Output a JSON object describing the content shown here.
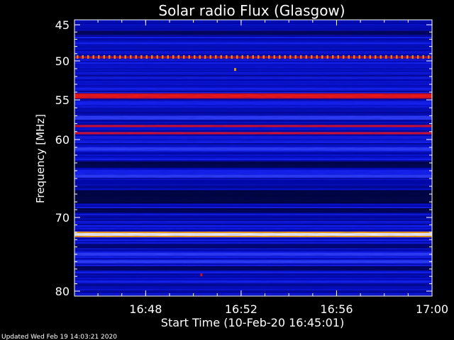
{
  "chart_data": {
    "type": "heatmap",
    "title": "Solar radio Flux (Glasgow)",
    "xlabel": "Start Time (10-Feb-20 16:45:01)",
    "ylabel": "Frequency [MHz]",
    "x_unit": "time",
    "x_range": [
      "16:45:01",
      "17:00"
    ],
    "x_ticks": [
      "16:48",
      "16:52",
      "16:56",
      "17:00"
    ],
    "y_range": [
      45,
      80
    ],
    "y_ticks": [
      "45",
      "50",
      "55",
      "60",
      "70",
      "80"
    ],
    "y_scale": "nonlinear, frequency increasing downward",
    "colormap": [
      "#000010",
      "#0000b0",
      "#2020ff",
      "#ff1010",
      "#ffb000",
      "#ffffff"
    ],
    "features": [
      {
        "kind": "band",
        "freq_mhz": 49.5,
        "intensity": "pulsed red/orange"
      },
      {
        "kind": "band",
        "freq_mhz": 54.5,
        "intensity": "strong red"
      },
      {
        "kind": "band",
        "freq_mhz": 58.3,
        "intensity": "red"
      },
      {
        "kind": "band",
        "freq_mhz": 59.2,
        "intensity": "red"
      },
      {
        "kind": "band",
        "freq_mhz": 72.3,
        "intensity": "white-hot"
      },
      {
        "kind": "spot",
        "time": "16:51:45",
        "freq_mhz": 51.1,
        "intensity": "orange"
      },
      {
        "kind": "spot",
        "time": "16:50:20",
        "freq_mhz": 77.8,
        "intensity": "red"
      }
    ]
  },
  "footer": {
    "updated": "Updated Wed Feb 19 14:03:21 2020"
  }
}
